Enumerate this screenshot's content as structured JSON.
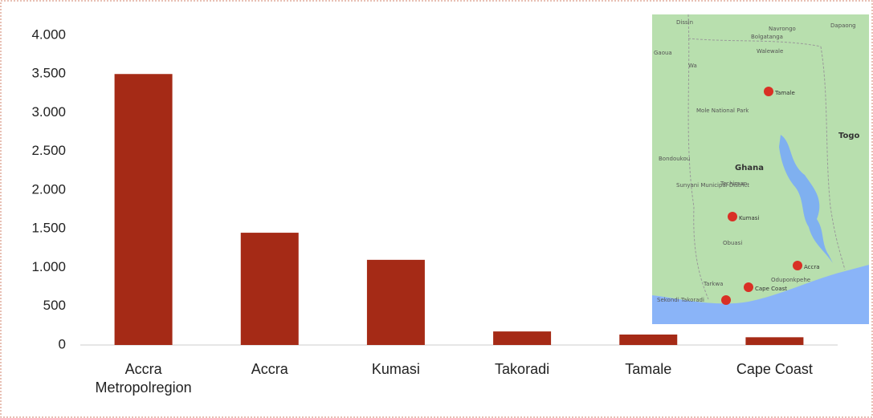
{
  "chart_data": {
    "type": "bar",
    "categories": [
      "Accra Metropolregion",
      "Accra",
      "Kumasi",
      "Takoradi",
      "Tamale",
      "Cape Coast"
    ],
    "values": [
      3500,
      1450,
      1100,
      175,
      135,
      100
    ],
    "color": "#a52a16",
    "ylim": [
      0,
      4000
    ],
    "yticks": [
      0,
      500,
      {
        "value": 1000,
        "label": "1.000"
      },
      {
        "value": 1500,
        "label": "1.500"
      },
      {
        "value": 2000,
        "label": "2.000"
      },
      {
        "value": 2500,
        "label": "2.500"
      },
      {
        "value": 3000,
        "label": "3.000"
      },
      {
        "value": 3500,
        "label": "3.500"
      },
      {
        "value": 4000,
        "label": "4.000"
      }
    ],
    "grid": false
  },
  "map": {
    "labels": [
      "Dissin",
      "Navrongo",
      "Dapaong",
      "Bolgatanga",
      "Walewale",
      "Gaoua",
      "Wa",
      "Mole National Park",
      "Tamale",
      "Togo",
      "Ghana",
      "Bondoukou",
      "Sunyani Municipal District",
      "Techiman",
      "Kumasi",
      "Obuasi",
      "Accra",
      "Oduponkpehe",
      "Tarkwa",
      "Cape Coast",
      "Sekondi Takoradi"
    ]
  }
}
